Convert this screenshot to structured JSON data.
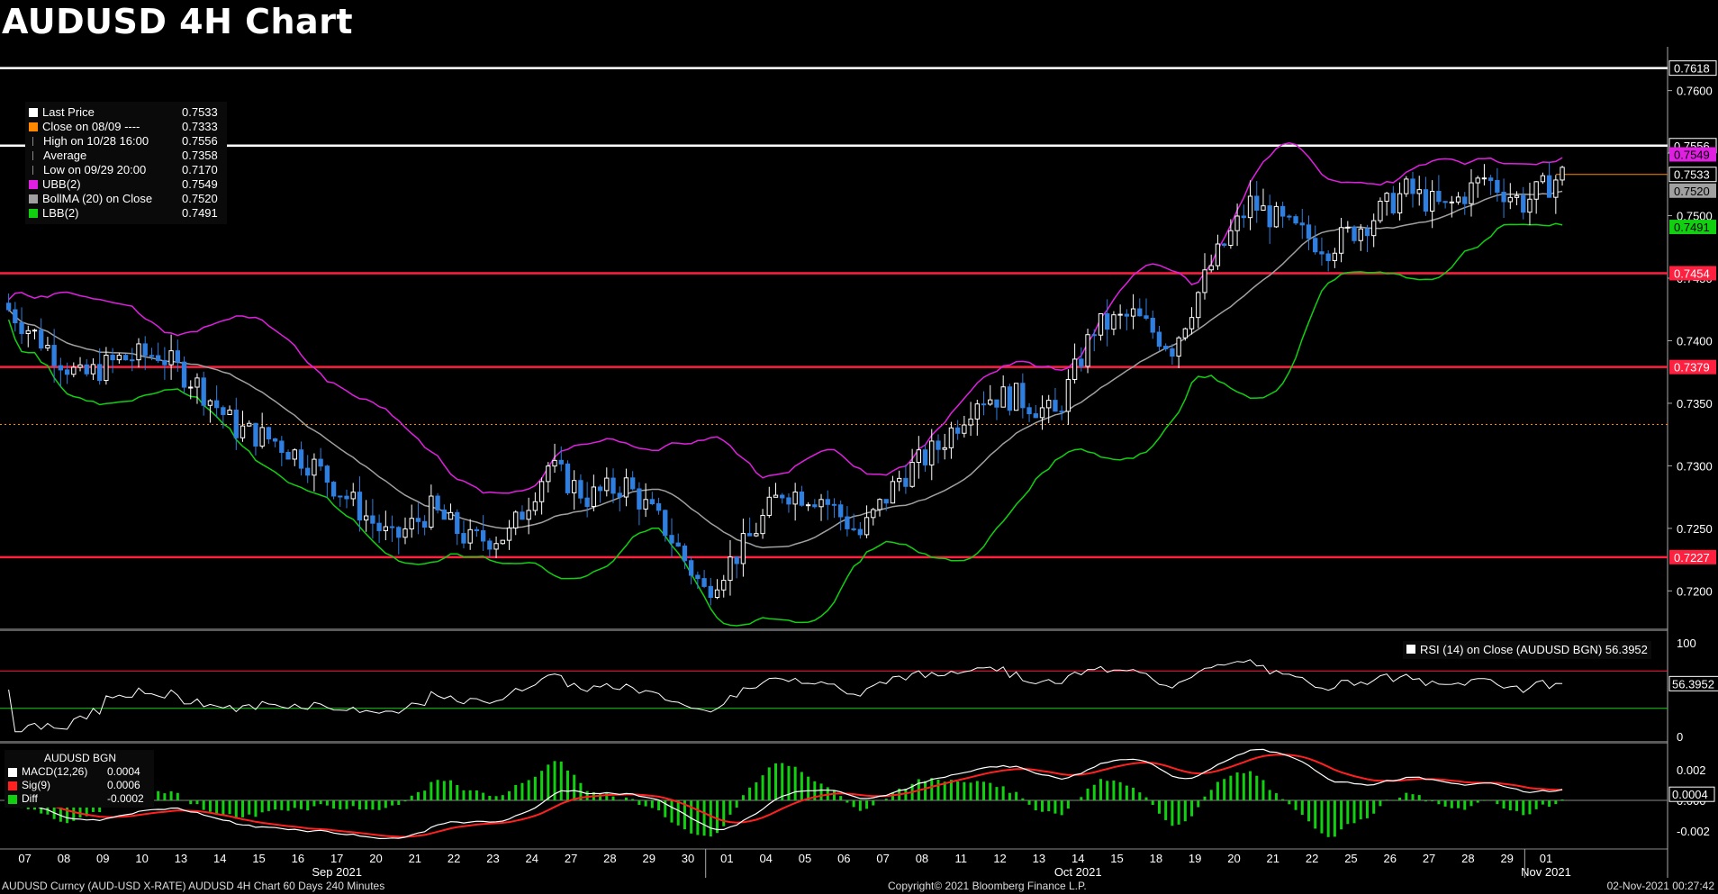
{
  "title": "AUDUSD 4H Chart",
  "colors": {
    "up": "#ffffff",
    "down": "#2e7fe0",
    "upper_band": "#e020e0",
    "lower_band": "#10d010",
    "midline": "#a0a0a0",
    "resistance": "#ff2040",
    "key_level": "#ffffff",
    "close_line": "#ff8800"
  },
  "legend": {
    "items": [
      {
        "icon": "square",
        "color": "#ffffff",
        "label": "Last Price",
        "value": "0.7533"
      },
      {
        "icon": "square",
        "color": "#ff8800",
        "label": "Close on 08/09 ----",
        "value": "0.7333"
      },
      {
        "icon": "high-marker",
        "color": "#888888",
        "label": "High on 10/28 16:00",
        "value": "0.7556"
      },
      {
        "icon": "line",
        "color": "#888888",
        "label": "Average",
        "value": "0.7358"
      },
      {
        "icon": "low-marker",
        "color": "#888888",
        "label": "Low on 09/29 20:00",
        "value": "0.7170"
      },
      {
        "icon": "square",
        "color": "#e020e0",
        "label": "UBB(2)",
        "value": "0.7549"
      },
      {
        "icon": "square",
        "color": "#a0a0a0",
        "label": "BollMA (20)  on Close",
        "value": "0.7520"
      },
      {
        "icon": "square",
        "color": "#10d010",
        "label": "LBB(2)",
        "value": "0.7491"
      }
    ]
  },
  "rsi_legend": {
    "label": "RSI (14)  on Close (AUDUSD BGN)",
    "value": "56.3952"
  },
  "macd_legend": {
    "title": "AUDUSD BGN",
    "items": [
      {
        "color": "#ffffff",
        "label": "MACD(12,26)",
        "value": "0.0004"
      },
      {
        "color": "#ff2020",
        "label": "Sig(9)",
        "value": "0.0006"
      },
      {
        "color": "#10d010",
        "label": "Diff",
        "value": "-0.0002"
      }
    ]
  },
  "chart_data": {
    "type": "candlestick",
    "title": "AUDUSD 4H Chart",
    "ylim": [
      0.717,
      0.7635
    ],
    "y_ticks": [
      "0.7600",
      "0.7550",
      "0.7500",
      "0.7450",
      "0.7400",
      "0.7350",
      "0.7300",
      "0.7250",
      "0.7200"
    ],
    "horizontal_levels": [
      {
        "value": 0.7618,
        "label": "0.7618",
        "color": "#ffffff"
      },
      {
        "value": 0.7556,
        "label": "0.7556",
        "color": "#ffffff"
      },
      {
        "value": 0.7454,
        "label": "0.7454",
        "color": "#ff2040"
      },
      {
        "value": 0.7379,
        "label": "0.7379",
        "color": "#ff2040"
      },
      {
        "value": 0.7227,
        "label": "0.7227",
        "color": "#ff2040"
      },
      {
        "value": 0.7333,
        "label": "",
        "color": "#ff8800",
        "dotted": true
      }
    ],
    "price_labels": [
      {
        "value": 0.7549,
        "label": "0.7549",
        "bg": "#e020e0",
        "fg": "#000000"
      },
      {
        "value": 0.7533,
        "label": "0.7533",
        "bg": "#000000",
        "fg": "#ffffff",
        "border": "#ffffff"
      },
      {
        "value": 0.752,
        "label": "0.7520",
        "bg": "#a0a0a0",
        "fg": "#000000"
      },
      {
        "value": 0.7491,
        "label": "0.7491",
        "bg": "#10d010",
        "fg": "#000000"
      }
    ],
    "x_dates": [
      "07",
      "08",
      "09",
      "10",
      "13",
      "14",
      "15",
      "16",
      "17",
      "20",
      "21",
      "22",
      "23",
      "24",
      "27",
      "28",
      "29",
      "30",
      "01",
      "04",
      "05",
      "06",
      "07",
      "08",
      "11",
      "12",
      "13",
      "14",
      "15",
      "18",
      "19",
      "20",
      "21",
      "22",
      "25",
      "26",
      "27",
      "28",
      "29",
      "01"
    ],
    "month_labels": [
      {
        "after_index": 8,
        "label": "Sep 2021"
      },
      {
        "after_index": 27,
        "label": "Oct 2021"
      },
      {
        "after_index": 39,
        "label": "Nov 2021"
      }
    ],
    "closes_by_day": [
      0.74,
      0.737,
      0.7385,
      0.739,
      0.7365,
      0.733,
      0.732,
      0.73,
      0.727,
      0.724,
      0.7265,
      0.724,
      0.7245,
      0.73,
      0.7275,
      0.7285,
      0.725,
      0.72,
      0.7235,
      0.728,
      0.7275,
      0.7245,
      0.729,
      0.7315,
      0.7355,
      0.7355,
      0.734,
      0.741,
      0.742,
      0.7395,
      0.746,
      0.751,
      0.749,
      0.7475,
      0.7495,
      0.752,
      0.7505,
      0.753,
      0.751,
      0.7533
    ],
    "rsi": {
      "ylim": [
        0,
        100
      ],
      "ticks": [
        "100",
        "0"
      ],
      "overbought": 70,
      "oversold": 30,
      "last": 56.3952,
      "last_label": "56.3952"
    },
    "macd": {
      "ticks": [
        "0.002",
        "0.000",
        "-0.002"
      ],
      "last_label": "0.0004"
    }
  },
  "footer": {
    "left": "AUDUSD Curncy (AUD-USD X-RATE) AUDUSD 4H Chart 60 Days 240 Minutes",
    "center": "Copyright© 2021 Bloomberg Finance L.P.",
    "right": "02-Nov-2021 00:27:42"
  }
}
